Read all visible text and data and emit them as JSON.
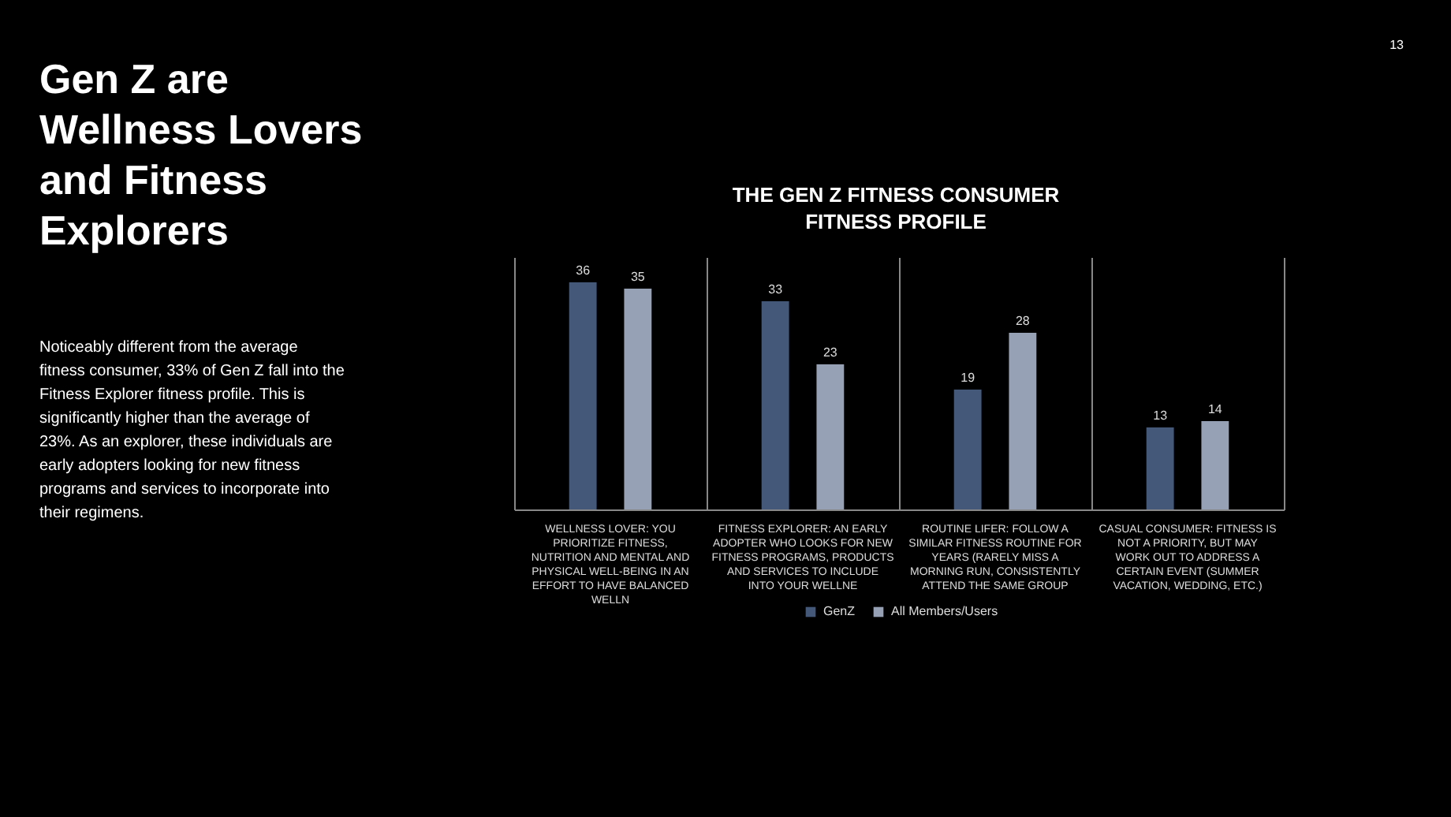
{
  "chart_data": {
    "type": "bar",
    "title": [
      "THE GEN Z FITNESS CONSUMER",
      "FITNESS PROFILE"
    ],
    "categories": [
      "WELLNESS LOVER: YOU PRIORITIZE FITNESS, NUTRITION AND MENTAL AND PHYSICAL WELL-BEING IN AN EFFORT TO HAVE BALANCED WELLN",
      "FITNESS EXPLORER: AN EARLY ADOPTER WHO LOOKS FOR NEW FITNESS PROGRAMS, PRODUCTS AND SERVICES TO INCLUDE INTO YOUR WELLNE",
      "ROUTINE LIFER: FOLLOW A SIMILAR FITNESS ROUTINE FOR YEARS (RARELY MISS A MORNING RUN, CONSISTENTLY ATTEND THE SAME GROUP",
      "CASUAL CONSUMER: FITNESS IS NOT A PRIORITY, BUT MAY WORK OUT TO ADDRESS A CERTAIN EVENT (SUMMER VACATION, WEDDING, ETC.)"
    ],
    "series": [
      {
        "name": "GenZ",
        "color": "#44597a",
        "values": [
          36,
          33,
          19,
          13
        ]
      },
      {
        "name": "All Members/Users",
        "color": "#97a1b5",
        "values": [
          35,
          23,
          28,
          14
        ]
      }
    ],
    "data_labels": true,
    "grid": "x",
    "legend": "bottom",
    "tick_labels": "x",
    "annotations": [
      "Gen Z are Wellness Lovers and Fitness Explorers",
      "Noticeably different from the average fitness consumer, 33% of Gen Z fall into the Fitness Explorer fitness profile. This is significantly higher than the average of 23%. As an explorer, these individuals are early adopters looking for new fitness programs and services to incorporate into their regimens.",
      "13"
    ]
  }
}
